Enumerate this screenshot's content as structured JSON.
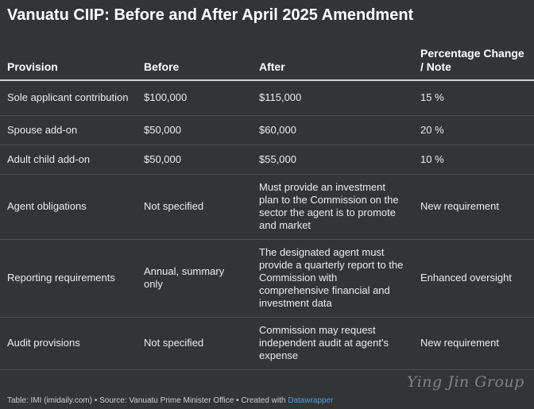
{
  "title": "Vanuatu CIIP: Before and After April 2025 Amendment",
  "table": {
    "headers": [
      "Provision",
      "Before",
      "After",
      "Percentage Change / Note"
    ],
    "rows": [
      [
        "Sole applicant contribution",
        "$100,000",
        "$115,000",
        "15 %"
      ],
      [
        "Spouse add-on",
        "$50,000",
        "$60,000",
        "20 %"
      ],
      [
        "Adult child add-on",
        "$50,000",
        "$55,000",
        "10 %"
      ],
      [
        "Agent obligations",
        "Not specified",
        "Must provide an investment plan to the Commission on the sector the agent is to promote and market",
        "New requirement"
      ],
      [
        "Reporting requirements",
        "Annual, summary only",
        "The designated agent must provide a quarterly report to the Commission with comprehensive financial and investment data",
        "Enhanced oversight"
      ],
      [
        "Audit provisions",
        "Not specified",
        "Commission may request independent audit at agent's expense",
        "New requirement"
      ]
    ]
  },
  "footer": {
    "text": "Table: IMI (imidaily.com) • Source: Vanuatu Prime Minister Office • Created with ",
    "link": "Datawrapper"
  },
  "watermark": "Ying Jin Group"
}
